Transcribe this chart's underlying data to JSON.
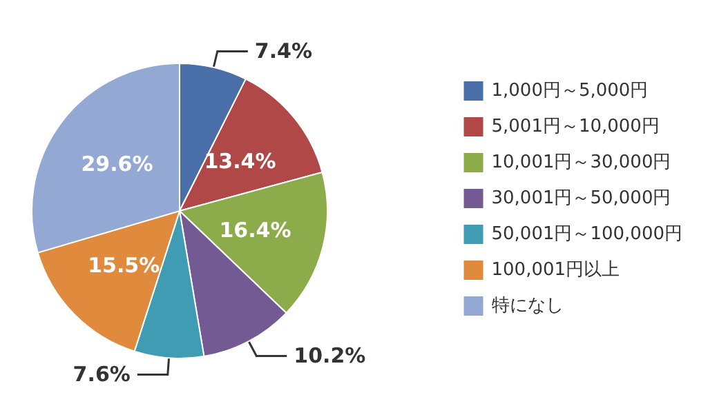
{
  "chart_data": {
    "type": "pie",
    "categories": [
      "1,000円～5,000円",
      "5,001円～10,000円",
      "10,001円～30,000円",
      "30,001円～50,000円",
      "50,001円～100,000円",
      "100,001円以上",
      "特になし"
    ],
    "values": [
      7.4,
      13.4,
      16.4,
      10.2,
      7.6,
      15.5,
      29.6
    ],
    "value_labels": [
      "7.4%",
      "13.4%",
      "16.4%",
      "10.2%",
      "7.6%",
      "15.5%",
      "29.6%"
    ],
    "colors": [
      "#4a6fa8",
      "#b04848",
      "#8cac4c",
      "#735a92",
      "#3f9cb3",
      "#e08a3e",
      "#93a9d3"
    ],
    "legend": "right"
  }
}
